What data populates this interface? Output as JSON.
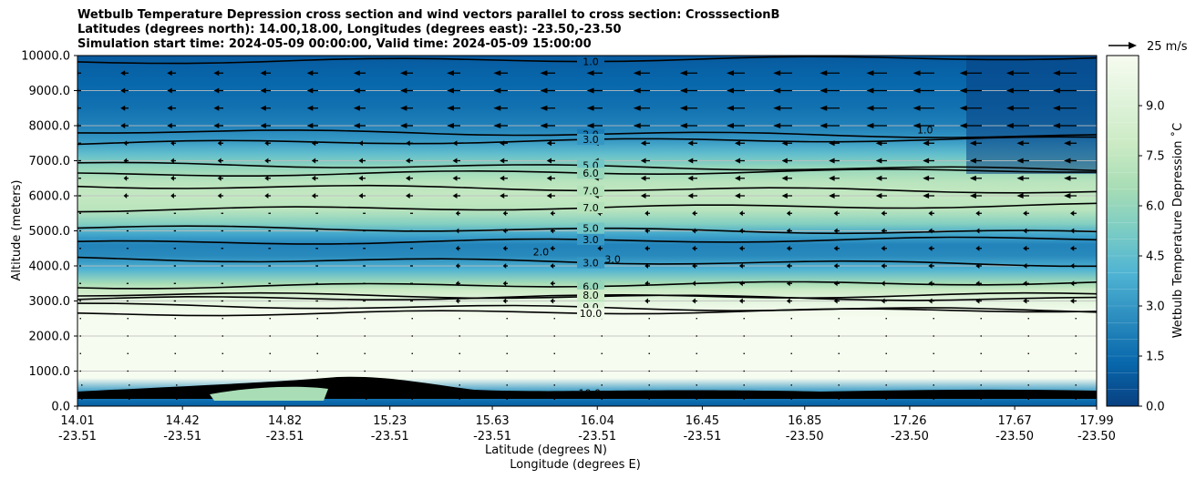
{
  "title_lines": [
    "Wetbulb Temperature Depression cross section and wind vectors parallel to cross section: CrosssectionB",
    "Latitudes (degrees north): 14.00,18.00, Longitudes (degrees east): -23.50,-23.50",
    "Simulation start time: 2024-05-09 00:00:00, Valid time: 2024-05-09 15:00:00"
  ],
  "chart_data": {
    "type": "contour",
    "variable": "Wetbulb Temperature Depression",
    "ylabel": "Altitude (meters)",
    "xlabel_lat": "Latitude (degrees N)",
    "xlabel_lon": "Longitude (degrees E)",
    "ylim": [
      0,
      10000
    ],
    "y_ticks": [
      "0.0",
      "1000.0",
      "2000.0",
      "3000.0",
      "4000.0",
      "5000.0",
      "6000.0",
      "7000.0",
      "8000.0",
      "9000.0",
      "10000.0"
    ],
    "x_ticks": [
      {
        "lat": "14.01",
        "lon": "-23.51"
      },
      {
        "lat": "14.42",
        "lon": "-23.51"
      },
      {
        "lat": "14.82",
        "lon": "-23.51"
      },
      {
        "lat": "15.23",
        "lon": "-23.51"
      },
      {
        "lat": "15.63",
        "lon": "-23.51"
      },
      {
        "lat": "16.04",
        "lon": "-23.51"
      },
      {
        "lat": "16.45",
        "lon": "-23.51"
      },
      {
        "lat": "16.85",
        "lon": "-23.50"
      },
      {
        "lat": "17.26",
        "lon": "-23.50"
      },
      {
        "lat": "17.67",
        "lon": "-23.50"
      },
      {
        "lat": "17.99",
        "lon": "-23.50"
      }
    ],
    "x_tick_values": [
      14.01,
      14.42,
      14.82,
      15.23,
      15.63,
      16.04,
      16.45,
      16.85,
      17.26,
      17.67,
      17.99
    ],
    "xlim": [
      14.01,
      17.99
    ],
    "grid": "horizontal",
    "colorbar": {
      "label": "Wetbulb Temperature Depression ˚C",
      "ticks": [
        "0.0",
        "1.5",
        "3.0",
        "4.5",
        "6.0",
        "7.5",
        "9.0"
      ],
      "range": [
        0,
        10.5
      ],
      "colormap": "GnBu_r",
      "colors": [
        "#084081",
        "#0868ac",
        "#2b8cbe",
        "#4eb3d3",
        "#7bccc4",
        "#a8ddb5",
        "#ccebc5",
        "#e0f3db",
        "#f7fcf0"
      ]
    },
    "wind_key": {
      "label": "25 m/s",
      "speed": 25
    },
    "profile": [
      {
        "z": 0,
        "v": 1.0
      },
      {
        "z": 150,
        "v": 1.5
      },
      {
        "z": 400,
        "v": 3.0
      },
      {
        "z": 800,
        "v": 10.5
      },
      {
        "z": 2500,
        "v": 10.5
      },
      {
        "z": 2800,
        "v": 10.0
      },
      {
        "z": 3100,
        "v": 9.0
      },
      {
        "z": 3300,
        "v": 8.0
      },
      {
        "z": 3500,
        "v": 6.5
      },
      {
        "z": 3900,
        "v": 4.0
      },
      {
        "z": 4300,
        "v": 2.5
      },
      {
        "z": 4600,
        "v": 2.3
      },
      {
        "z": 4900,
        "v": 3.5
      },
      {
        "z": 5200,
        "v": 5.5
      },
      {
        "z": 5600,
        "v": 7.2
      },
      {
        "z": 6000,
        "v": 7.6
      },
      {
        "z": 6400,
        "v": 7.2
      },
      {
        "z": 6800,
        "v": 6.0
      },
      {
        "z": 7200,
        "v": 4.5
      },
      {
        "z": 7600,
        "v": 3.0
      },
      {
        "z": 8000,
        "v": 2.2
      },
      {
        "z": 8600,
        "v": 1.6
      },
      {
        "z": 9200,
        "v": 1.3
      },
      {
        "z": 9800,
        "v": 1.0
      },
      {
        "z": 10000,
        "v": 0.8
      }
    ],
    "contour_lines": [
      {
        "level": "1.0",
        "label": "1.0",
        "z": 9820
      },
      {
        "level": "2.0",
        "label": "2.0",
        "z": 7850
      },
      {
        "level": "3.0",
        "label": "3.0",
        "z": 7500
      },
      {
        "level": "5.0",
        "label": "5.0",
        "z": 6900
      },
      {
        "level": "6.0",
        "label": "6.0",
        "z": 6600
      },
      {
        "level": "7.0",
        "label": "7.0",
        "z": 6280
      },
      {
        "level": "7.0",
        "label": "7.0",
        "z": 5600
      },
      {
        "level": "5.0",
        "label": "5.0",
        "z": 5100
      },
      {
        "level": "3.0",
        "label": "3.0",
        "z": 4650
      },
      {
        "level": "3.0",
        "label": "3.0",
        "z": 4200
      },
      {
        "level": "6.0",
        "label": "6.0",
        "z": 3400
      },
      {
        "level": "7.0",
        "label": "7.0",
        "z": 3200
      },
      {
        "level": "8.0",
        "label": "8.0",
        "z": 3050
      },
      {
        "level": "9.0",
        "label": "9.0",
        "z": 2880
      },
      {
        "level": "10.0",
        "label": "10.0",
        "z": 2620
      }
    ],
    "extra_contour_labels": [
      {
        "label": "2.0",
        "lat": 15.82,
        "z": 4400
      },
      {
        "label": "3.0",
        "lat": 16.1,
        "z": 4200
      },
      {
        "label": "1.0",
        "lat": 17.32,
        "z": 7880
      },
      {
        "label": "10.0",
        "lat": 16.01,
        "z": 380
      }
    ],
    "wind_rows_z": [
      200,
      600,
      1000,
      1500,
      2000,
      2500,
      3000,
      3500,
      4000,
      4500,
      5000,
      5500,
      6000,
      6500,
      7000,
      7500,
      8000,
      8500,
      9000,
      9500
    ]
  }
}
